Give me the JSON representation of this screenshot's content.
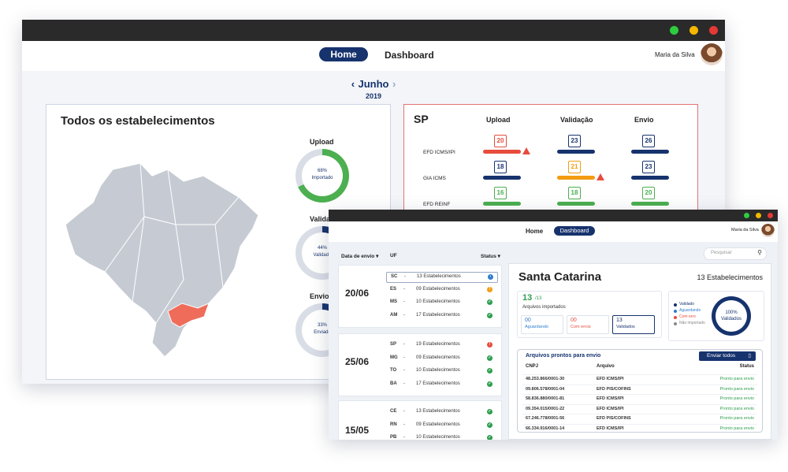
{
  "back": {
    "nav": {
      "home": "Home",
      "dashboard": "Dashboard"
    },
    "user": "Maria da Silva",
    "month": {
      "label": "Junho",
      "year": "2019"
    },
    "map_card": {
      "title": "Todos os estabelecimentos",
      "donuts": [
        {
          "label": "Upload",
          "percent": "68%",
          "caption": "Importado",
          "value": 0.68,
          "color": "#4caf50"
        },
        {
          "label": "Validação",
          "percent": "44%",
          "caption": "Validado",
          "value": 0.44,
          "color": "#17336e"
        },
        {
          "label": "Envio",
          "percent": "33%",
          "caption": "Enviado",
          "value": 0.33,
          "color": "#17336e"
        }
      ],
      "highlight_state_color": "#ef6c5a"
    },
    "sp_card": {
      "title": "SP",
      "columns": [
        "Upload",
        "Validação",
        "Envio"
      ],
      "rows": [
        {
          "label": "EFD ICMS/IPI",
          "cells": [
            {
              "day": "20",
              "color": "#e74c3c",
              "warn": true
            },
            {
              "day": "23",
              "color": "#17336e",
              "warn": false
            },
            {
              "day": "26",
              "color": "#17336e",
              "warn": false
            }
          ]
        },
        {
          "label": "GIA ICMS",
          "cells": [
            {
              "day": "18",
              "color": "#17336e",
              "warn": false
            },
            {
              "day": "21",
              "color": "#f39c12",
              "warn": true
            },
            {
              "day": "23",
              "color": "#17336e",
              "warn": false
            }
          ]
        },
        {
          "label": "EFD REINF",
          "cells": [
            {
              "day": "16",
              "color": "#4caf50",
              "warn": false
            },
            {
              "day": "18",
              "color": "#4caf50",
              "warn": false
            },
            {
              "day": "20",
              "color": "#4caf50",
              "warn": false
            }
          ]
        }
      ]
    }
  },
  "front": {
    "nav": {
      "home": "Home",
      "dashboard": "Dashboard"
    },
    "user": "Maria da Silva",
    "search_placeholder": "Pesquisar",
    "headers": {
      "date": "Data de envio",
      "uf": "UF",
      "status": "Status"
    },
    "groups": [
      {
        "date": "20/06",
        "rows": [
          {
            "uf": "SC",
            "text": "13 Estabelecimentos",
            "status": "info"
          },
          {
            "uf": "ES",
            "text": "09 Estabelecimentos",
            "status": "warn"
          },
          {
            "uf": "MS",
            "text": "10 Estabelecimentos",
            "status": "ok"
          },
          {
            "uf": "AM",
            "text": "17 Estabelecimentos",
            "status": "ok"
          }
        ]
      },
      {
        "date": "25/06",
        "rows": [
          {
            "uf": "SP",
            "text": "19 Estabelecimentos",
            "status": "error"
          },
          {
            "uf": "MG",
            "text": "09 Estabelecimentos",
            "status": "ok"
          },
          {
            "uf": "TO",
            "text": "10 Estabelecimentos",
            "status": "ok"
          },
          {
            "uf": "BA",
            "text": "17 Estabelecimentos",
            "status": "ok"
          }
        ]
      },
      {
        "date": "15/05",
        "rows": [
          {
            "uf": "CE",
            "text": "13 Estabelecimentos",
            "status": "ok"
          },
          {
            "uf": "RN",
            "text": "09 Estabelecimentos",
            "status": "ok"
          },
          {
            "uf": "PB",
            "text": "10 Estabelecimentos",
            "status": "ok"
          }
        ]
      }
    ],
    "detail": {
      "state": "Santa Catarina",
      "count": "13 Estabelecimentos",
      "imported": {
        "value": "13",
        "total": "/13",
        "label": "Arquivos importados"
      },
      "boxes": [
        {
          "value": "00",
          "label": "Aguardando",
          "color": "#2d7dd2"
        },
        {
          "value": "00",
          "label": "Com erros",
          "color": "#e74c3c"
        },
        {
          "value": "13",
          "label": "Validados",
          "color": "#17336e"
        }
      ],
      "legend": [
        {
          "label": "Validado",
          "color": "#17336e"
        },
        {
          "label": "Aguardando",
          "color": "#2d7dd2"
        },
        {
          "label": "Com erro",
          "color": "#e74c3c"
        },
        {
          "label": "Não importado",
          "color": "#888888"
        }
      ],
      "donut": {
        "percent": "100%",
        "caption": "Validados"
      },
      "ready": {
        "title": "Arquivos prontos para envio",
        "button": "Enviar todos",
        "cols": [
          "CNPJ",
          "Arquivo",
          "Status"
        ],
        "rows": [
          {
            "cnpj": "48.253.866/0001-30",
            "file": "EFD ICMS/IPI",
            "status": "Pronto para envio"
          },
          {
            "cnpj": "09.806.578/0001-04",
            "file": "EFD PIS/COFINS",
            "status": "Pronto para envio"
          },
          {
            "cnpj": "58.836.880/0001-81",
            "file": "EFD ICMS/IPI",
            "status": "Pronto para envio"
          },
          {
            "cnpj": "09.354.015/0001-22",
            "file": "EFD ICMS/IPI",
            "status": "Pronto para envio"
          },
          {
            "cnpj": "67.246.778/0001-56",
            "file": "EFD PIS/COFINS",
            "status": "Pronto para envio"
          },
          {
            "cnpj": "66.334.916/0001-14",
            "file": "EFD ICMS/IPI",
            "status": "Pronto para envio"
          }
        ]
      }
    }
  }
}
